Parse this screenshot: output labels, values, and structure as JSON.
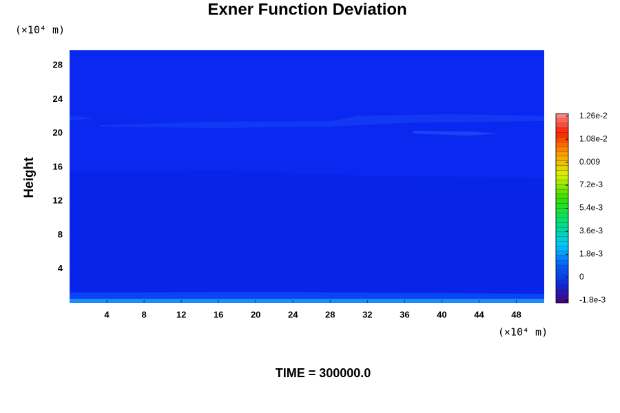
{
  "chart_data": {
    "type": "contour",
    "title": "Exner Function Deviation",
    "ylabel": "Height",
    "x_unit": "(×10⁴ m)",
    "y_unit": "(×10⁴ m)",
    "annotation": "TIME = 300000.0",
    "xlim": [
      0,
      51
    ],
    "xticks": [
      4,
      8,
      12,
      16,
      20,
      24,
      28,
      32,
      36,
      40,
      44,
      48
    ],
    "ylim": [
      0,
      29.8
    ],
    "yticks": [
      4,
      8,
      12,
      16,
      20,
      24,
      28
    ],
    "colorbar": {
      "clim": [
        -0.002,
        0.0128
      ],
      "ticks": [
        {
          "value": -0.0018,
          "label": "-1.8e-3"
        },
        0,
        {
          "value": 0.0018,
          "label": "1.8e-3"
        },
        {
          "value": 0.0036,
          "label": "3.6e-3"
        },
        {
          "value": 0.0054,
          "label": "5.4e-3"
        },
        {
          "value": 0.0072,
          "label": "7.2e-3"
        },
        0.009,
        {
          "value": 0.0108,
          "label": "1.08e-2"
        },
        {
          "value": 0.0126,
          "label": "1.26e-2"
        }
      ]
    }
  }
}
